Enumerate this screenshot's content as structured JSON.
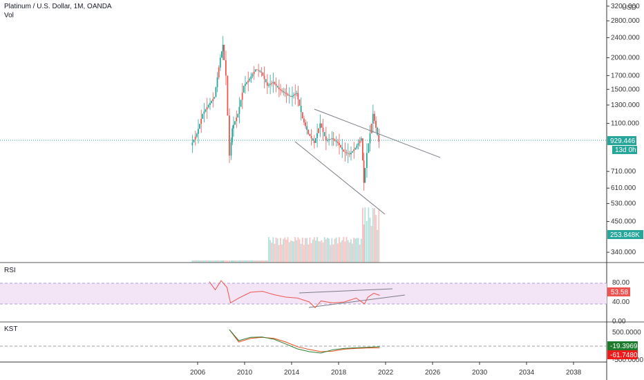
{
  "header": {
    "title": "Platinum / U.S. Dollar, 1M, OANDA",
    "vol_label": "Vol",
    "currency": "USD"
  },
  "colors": {
    "up": "#26a69a",
    "down": "#ef5350",
    "rsi_line": "#ef5350",
    "rsi_band": "#e1bee7",
    "kst_line": "#2e7d32",
    "kst_signal": "#e64a19",
    "trendline": "#787b86",
    "price_badge": "#26a69a",
    "vol_badge": "#26a69a",
    "kst_badge_up": "#1b7a2b",
    "kst_badge_down": "#ef1a1a"
  },
  "price_axis": {
    "labels": [
      "3200.000",
      "2800.000",
      "2400.000",
      "2000.000",
      "1700.000",
      "1500.000",
      "1300.000",
      "1100.000",
      "710.000",
      "610.000",
      "530.000",
      "450.000",
      "340.000"
    ]
  },
  "badges": {
    "last_price": "929.446",
    "countdown": "13d 0h",
    "volume": "253.848K",
    "rsi_value": "53.58",
    "kst_value": "-19.3969",
    "kst_signal_value": "-61.7480"
  },
  "rsi": {
    "label": "RSI",
    "axis_labels": [
      "80.00",
      "40.00",
      "0.00"
    ]
  },
  "kst": {
    "label": "KST",
    "axis_labels": [
      "500.0000",
      "-500.0000"
    ]
  },
  "time_axis": {
    "labels": [
      "2006",
      "2010",
      "2014",
      "2018",
      "2022",
      "2026",
      "2030",
      "2034",
      "2038"
    ]
  },
  "chart_data": {
    "type": "candlestick",
    "title": "Platinum / U.S. Dollar, 1M, OANDA",
    "scale": "log",
    "x_range": [
      2006,
      2040
    ],
    "y_range": [
      300,
      3300
    ],
    "price_series": {
      "name": "",
      "x": [
        2005.5,
        2006.0,
        2006.5,
        2007.0,
        2007.5,
        2008.0,
        2008.2,
        2008.5,
        2008.8,
        2009.0,
        2009.5,
        2010.0,
        2010.5,
        2011.0,
        2011.5,
        2012.0,
        2012.5,
        2013.0,
        2013.5,
        2014.0,
        2014.5,
        2015.0,
        2015.5,
        2016.0,
        2016.5,
        2017.0,
        2017.5,
        2018.0,
        2018.5,
        2019.0,
        2019.5,
        2020.0,
        2020.2,
        2020.5,
        2021.0,
        2021.5
      ],
      "close": [
        900,
        1000,
        1200,
        1300,
        1400,
        2000,
        2250,
        1700,
        820,
        1050,
        1200,
        1550,
        1650,
        1800,
        1750,
        1550,
        1600,
        1500,
        1450,
        1400,
        1450,
        1150,
        1000,
        920,
        1100,
        940,
        960,
        920,
        850,
        830,
        880,
        960,
        640,
        840,
        1200,
        929.446
      ]
    },
    "volume_last": "253.848K",
    "rsi": {
      "x": [
        2007.0,
        2007.5,
        2008.0,
        2008.5,
        2008.8,
        2009.5,
        2010.5,
        2011.5,
        2012.5,
        2013.5,
        2014.5,
        2015.5,
        2016.0,
        2016.5,
        2017.5,
        2018.5,
        2019.5,
        2020.2,
        2020.5,
        2021.0,
        2021.5
      ],
      "values": [
        82,
        65,
        84,
        70,
        38,
        48,
        60,
        62,
        55,
        50,
        48,
        40,
        28,
        42,
        38,
        40,
        48,
        36,
        50,
        58,
        53.58
      ],
      "band": [
        30,
        70
      ]
    },
    "kst": {
      "x": [
        2008.7,
        2009.5,
        2010.5,
        2011.5,
        2012.5,
        2013.5,
        2014.5,
        2015.5,
        2016.5,
        2017.5,
        2018.5,
        2019.5,
        2020.5,
        2021.5
      ],
      "kst": [
        600,
        200,
        320,
        330,
        250,
        80,
        -100,
        -200,
        -250,
        -130,
        -80,
        -60,
        -40,
        -19.3969
      ],
      "signal": [
        600,
        150,
        280,
        320,
        280,
        150,
        -20,
        -120,
        -200,
        -180,
        -110,
        -80,
        -65,
        -61.748
      ]
    }
  }
}
